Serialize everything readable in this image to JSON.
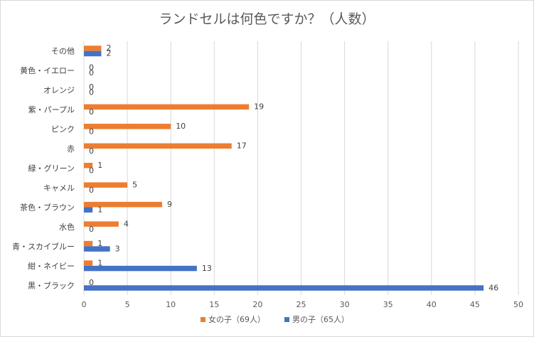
{
  "chart_data": {
    "type": "bar",
    "orientation": "horizontal",
    "title": "ランドセルは何色ですか？（人数）",
    "categories": [
      "黒・ブラック",
      "紺・ネイビー",
      "青・スカイブルー",
      "水色",
      "茶色・ブラウン",
      "キャメル",
      "緑・グリーン",
      "赤",
      "ピンク",
      "紫・パープル",
      "オレンジ",
      "黄色・イエロー",
      "その他"
    ],
    "series": [
      {
        "name": "女の子（69人）",
        "color": "#ed7d31",
        "values": [
          0,
          1,
          1,
          4,
          9,
          5,
          1,
          17,
          10,
          19,
          0,
          0,
          2
        ]
      },
      {
        "name": "男の子（65人）",
        "color": "#4472c4",
        "values": [
          46,
          13,
          3,
          0,
          1,
          0,
          0,
          0,
          0,
          0,
          0,
          0,
          2
        ]
      }
    ],
    "xlim": [
      0,
      50
    ],
    "xticks": [
      0,
      5,
      10,
      15,
      20,
      25,
      30,
      35,
      40,
      45,
      50
    ],
    "grid": true,
    "legend_position": "bottom",
    "data_labels": true
  }
}
